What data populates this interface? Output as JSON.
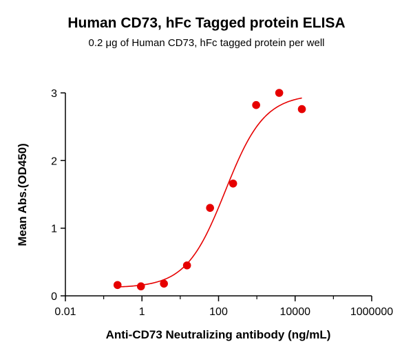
{
  "chart_data": {
    "type": "scatter",
    "title": "Human CD73, hFc Tagged protein ELISA",
    "subtitle": "0.2 μg of Human CD73, hFc tagged protein per well",
    "xlabel": "Anti-CD73 Neutralizing antibody (ng/mL)",
    "ylabel": "Mean Abs.(OD450)",
    "x_scale": "log",
    "xlim": [
      0.01,
      1000000
    ],
    "ylim": [
      0,
      3
    ],
    "x_ticks": [
      0.01,
      1,
      100,
      10000,
      1000000
    ],
    "x_tick_labels": [
      "0.01",
      "1",
      "100",
      "10000",
      "1000000"
    ],
    "y_ticks": [
      0,
      1,
      2,
      3
    ],
    "y_tick_labels": [
      "0",
      "1",
      "2",
      "3"
    ],
    "grid": false,
    "points": [
      {
        "x": 0.23,
        "y": 0.16
      },
      {
        "x": 0.94,
        "y": 0.14
      },
      {
        "x": 3.75,
        "y": 0.18
      },
      {
        "x": 15,
        "y": 0.45
      },
      {
        "x": 60,
        "y": 1.3
      },
      {
        "x": 240,
        "y": 1.66
      },
      {
        "x": 960,
        "y": 2.82
      },
      {
        "x": 3840,
        "y": 3.0
      },
      {
        "x": 15000,
        "y": 2.76
      }
    ],
    "fit_curve": {
      "model": "4PL",
      "bottom": 0.12,
      "top": 2.98,
      "ec50": 150,
      "hill": 0.85
    },
    "colors": {
      "points": "#e60000",
      "curve": "#e60000",
      "axis": "#000000"
    }
  }
}
